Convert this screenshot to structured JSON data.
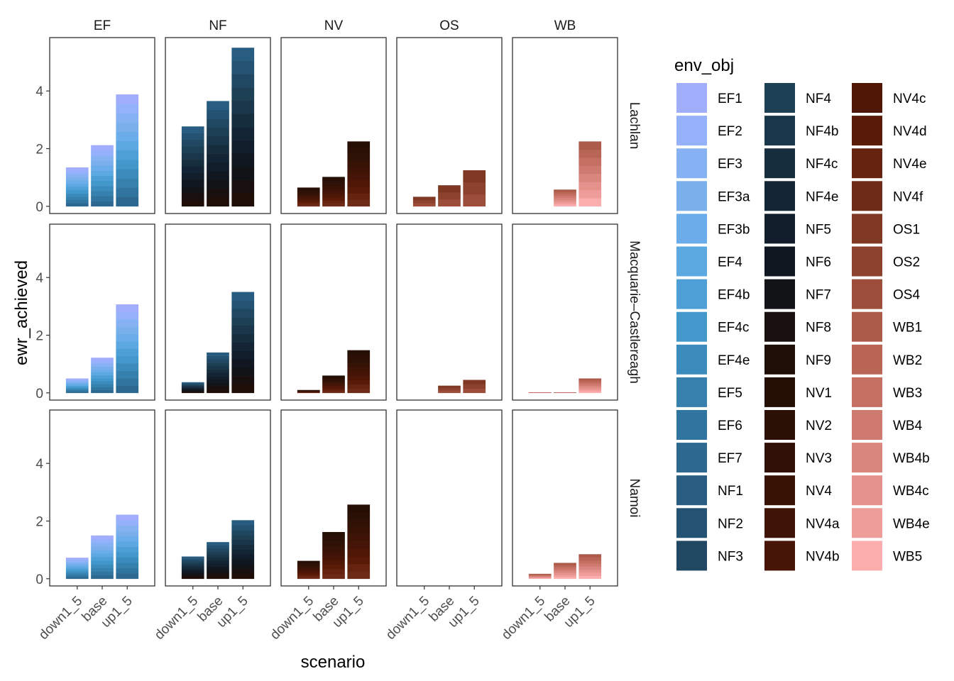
{
  "chart_data": {
    "type": "bar",
    "stacked": true,
    "facet_cols": [
      "EF",
      "NF",
      "NV",
      "OS",
      "WB"
    ],
    "facet_rows": [
      "Lachlan",
      "Macquarie–Castlereagh",
      "Namoi"
    ],
    "categories": [
      "down1_5",
      "base",
      "up1_5"
    ],
    "xlabel": "scenario",
    "ylabel": "ewr_achieved",
    "ylim": [
      0,
      5.6
    ],
    "yticks": [
      0,
      2,
      4
    ],
    "legend": {
      "title": "env_obj",
      "placement": "right",
      "entries": [
        "EF1",
        "EF2",
        "EF3",
        "EF3a",
        "EF3b",
        "EF4",
        "EF4b",
        "EF4c",
        "EF4e",
        "EF5",
        "EF6",
        "EF7",
        "NF1",
        "NF2",
        "NF3",
        "NF4",
        "NF4b",
        "NF4c",
        "NF4e",
        "NF5",
        "NF6",
        "NF7",
        "NF8",
        "NF9",
        "NV1",
        "NV2",
        "NV3",
        "NV4",
        "NV4a",
        "NV4b",
        "NV4c",
        "NV4d",
        "NV4e",
        "NV4f",
        "OS1",
        "OS2",
        "OS4",
        "WB1",
        "WB2",
        "WB3",
        "WB4",
        "WB4b",
        "WB4c",
        "WB4e",
        "WB5"
      ],
      "colors": [
        "#a1aefe",
        "#95b1fb",
        "#86b2f4",
        "#79b0eb",
        "#6badea",
        "#5ca8e0",
        "#4d9fd6",
        "#4298cb",
        "#3b8bbd",
        "#3580ad",
        "#30759f",
        "#2c6890",
        "#285d81",
        "#245272",
        "#214863",
        "#1d4055",
        "#19364a",
        "#162d3e",
        "#132534",
        "#111d2a",
        "#101721",
        "#111317",
        "#1a0f0f",
        "#1f0e08",
        "#250f05",
        "#2a1005",
        "#301106",
        "#371306",
        "#3f1406",
        "#471507",
        "#501707",
        "#5a1a08",
        "#662310",
        "#6e2b18",
        "#7f3824",
        "#8d4230",
        "#9c4e3b",
        "#ac5a49",
        "#b96556",
        "#c46f62",
        "#cf7a70",
        "#d9867e",
        "#e5928d",
        "#ef9d9b",
        "#fcaeae"
      ]
    },
    "panels": [
      {
        "row": 0,
        "col": 0,
        "totals": [
          1.35,
          2.12,
          3.88
        ]
      },
      {
        "row": 0,
        "col": 1,
        "totals": [
          2.77,
          3.65,
          5.5
        ]
      },
      {
        "row": 0,
        "col": 2,
        "totals": [
          0.65,
          1.02,
          2.25
        ]
      },
      {
        "row": 0,
        "col": 3,
        "totals": [
          0.33,
          0.73,
          1.25
        ]
      },
      {
        "row": 0,
        "col": 4,
        "totals": [
          0,
          0.58,
          2.25
        ]
      },
      {
        "row": 1,
        "col": 0,
        "totals": [
          0.5,
          1.22,
          3.07
        ]
      },
      {
        "row": 1,
        "col": 1,
        "totals": [
          0.37,
          1.4,
          3.5
        ]
      },
      {
        "row": 1,
        "col": 2,
        "totals": [
          0.1,
          0.6,
          1.48
        ]
      },
      {
        "row": 1,
        "col": 3,
        "totals": [
          0,
          0.25,
          0.45
        ]
      },
      {
        "row": 1,
        "col": 4,
        "totals": [
          0.02,
          0.02,
          0.5
        ]
      },
      {
        "row": 2,
        "col": 0,
        "totals": [
          0.73,
          1.5,
          2.22
        ]
      },
      {
        "row": 2,
        "col": 1,
        "totals": [
          0.77,
          1.27,
          2.03
        ]
      },
      {
        "row": 2,
        "col": 2,
        "totals": [
          0.62,
          1.62,
          2.57
        ]
      },
      {
        "row": 2,
        "col": 3,
        "totals": [
          0,
          0,
          0
        ]
      },
      {
        "row": 2,
        "col": 4,
        "totals": [
          0.17,
          0.55,
          0.85
        ]
      }
    ]
  }
}
